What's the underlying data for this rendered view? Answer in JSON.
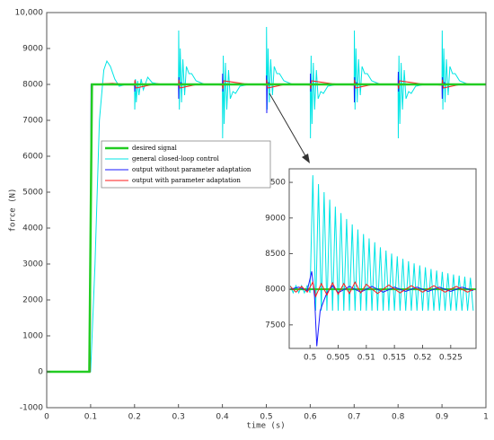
{
  "chart_data": [
    {
      "type": "line",
      "xlabel": "time (s)",
      "ylabel": "force (N)",
      "xlim": [
        0,
        1
      ],
      "ylim": [
        -1000,
        10000
      ],
      "xticks": [
        0,
        0.1,
        0.2,
        0.3,
        0.4,
        0.5,
        0.6,
        0.7,
        0.8,
        0.9,
        1
      ],
      "yticks": [
        -1000,
        0,
        1000,
        2000,
        3000,
        4000,
        5000,
        6000,
        7000,
        8000,
        9000,
        {
          "value": 10000,
          "label": "10,000"
        }
      ],
      "series": [
        {
          "name": "general closed-loop control",
          "color": "#00e5e5",
          "x": [
            0,
            0.1,
            0.11,
            0.12,
            0.13,
            0.137,
            0.145,
            0.155,
            0.165,
            0.18,
            0.2,
            0.2005,
            0.202,
            0.204,
            0.207,
            0.21,
            0.215,
            0.22,
            0.23,
            0.24,
            0.26,
            0.3,
            0.3005,
            0.302,
            0.304,
            0.307,
            0.31,
            0.314,
            0.318,
            0.324,
            0.33,
            0.34,
            0.36,
            0.4,
            0.4005,
            0.402,
            0.404,
            0.407,
            0.41,
            0.414,
            0.418,
            0.424,
            0.43,
            0.44,
            0.46,
            0.5,
            0.5005,
            0.502,
            0.504,
            0.507,
            0.51,
            0.514,
            0.518,
            0.524,
            0.53,
            0.54,
            0.56,
            0.6,
            0.6005,
            0.602,
            0.604,
            0.607,
            0.61,
            0.614,
            0.618,
            0.624,
            0.63,
            0.64,
            0.66,
            0.7,
            0.7005,
            0.702,
            0.704,
            0.707,
            0.71,
            0.714,
            0.718,
            0.724,
            0.73,
            0.74,
            0.76,
            0.8,
            0.8005,
            0.802,
            0.804,
            0.807,
            0.81,
            0.814,
            0.818,
            0.824,
            0.83,
            0.84,
            0.86,
            0.9,
            0.9005,
            0.902,
            0.904,
            0.907,
            0.91,
            0.914,
            0.918,
            0.924,
            0.93,
            0.94,
            0.96,
            1
          ],
          "values": [
            0,
            0,
            3000,
            7000,
            8400,
            8650,
            8500,
            8150,
            7950,
            8000,
            8000,
            7300,
            8150,
            7500,
            8100,
            7700,
            8150,
            7850,
            8200,
            8050,
            8000,
            8000,
            9500,
            7300,
            9000,
            7500,
            8700,
            7700,
            8500,
            8300,
            8300,
            8100,
            8000,
            8000,
            6500,
            8800,
            6900,
            8600,
            7300,
            8400,
            7600,
            7800,
            7750,
            7950,
            8000,
            8000,
            9600,
            7300,
            9000,
            7500,
            8700,
            7700,
            8500,
            8300,
            8300,
            8100,
            8000,
            8000,
            6500,
            8800,
            6900,
            8600,
            7300,
            8400,
            7600,
            7800,
            7750,
            7950,
            8000,
            8000,
            9500,
            7300,
            9000,
            7500,
            8700,
            7700,
            8500,
            8300,
            8300,
            8100,
            8000,
            8000,
            6500,
            8800,
            6900,
            8600,
            7300,
            8400,
            7600,
            7800,
            7750,
            7950,
            8000,
            8000,
            9500,
            7300,
            9000,
            7500,
            8700,
            7700,
            8500,
            8300,
            8300,
            8100,
            8000,
            8000
          ]
        },
        {
          "name": "output without parameter adaptation",
          "color": "#1a1aff",
          "x": [
            0,
            0.099,
            0.1005,
            0.101,
            0.2,
            0.2005,
            0.201,
            0.203,
            0.3,
            0.3005,
            0.301,
            0.302,
            0.305,
            0.31,
            0.4,
            0.4005,
            0.401,
            0.402,
            0.405,
            0.41,
            0.5,
            0.5005,
            0.501,
            0.502,
            0.505,
            0.51,
            0.6,
            0.6005,
            0.601,
            0.602,
            0.605,
            0.61,
            0.7,
            0.7005,
            0.701,
            0.702,
            0.705,
            0.71,
            0.8,
            0.8005,
            0.801,
            0.802,
            0.805,
            0.81,
            0.9,
            0.9005,
            0.901,
            0.902,
            0.905,
            0.91,
            1
          ],
          "values": [
            0,
            0,
            6100,
            8000,
            8000,
            7800,
            8100,
            8000,
            8000,
            7600,
            8200,
            7950,
            8050,
            8000,
            8000,
            8300,
            7800,
            8050,
            7980,
            8000,
            8000,
            8250,
            7200,
            7900,
            8050,
            8000,
            8000,
            8300,
            7800,
            8050,
            7980,
            8000,
            8000,
            7500,
            8200,
            7950,
            8050,
            8000,
            8000,
            8350,
            7800,
            8050,
            7980,
            8000,
            8000,
            7600,
            8200,
            7950,
            8050,
            8000,
            8000
          ]
        },
        {
          "name": "output with parameter adaptation",
          "color": "#ff1a1a",
          "x": [
            0,
            0.099,
            0.102,
            0.15,
            0.2,
            0.201,
            0.203,
            0.25,
            0.3,
            0.301,
            0.303,
            0.35,
            0.4,
            0.401,
            0.403,
            0.45,
            0.5,
            0.501,
            0.503,
            0.55,
            0.6,
            0.601,
            0.603,
            0.65,
            0.7,
            0.701,
            0.703,
            0.75,
            0.8,
            0.801,
            0.803,
            0.85,
            0.9,
            0.901,
            0.903,
            0.95,
            1
          ],
          "values": [
            0,
            0,
            8000,
            8030,
            7980,
            8120,
            7900,
            8020,
            7980,
            8130,
            7900,
            8020,
            7980,
            7880,
            8100,
            8020,
            7980,
            8130,
            7900,
            8020,
            7980,
            7880,
            8100,
            8020,
            7980,
            8130,
            7900,
            8020,
            7980,
            7880,
            8100,
            8020,
            7980,
            8130,
            7900,
            8020,
            8000
          ]
        },
        {
          "name": "desired signal",
          "color": "#22cc22",
          "x": [
            0,
            0.097,
            0.103,
            1
          ],
          "values": [
            0,
            0,
            8000,
            8000
          ]
        }
      ],
      "legend_order": [
        3,
        0,
        1,
        2
      ]
    },
    {
      "type": "line",
      "xlim": [
        0.4963,
        0.5295
      ],
      "ylim": [
        7170,
        9690
      ],
      "xticks": [
        0.5,
        0.505,
        0.51,
        0.515,
        0.52,
        0.525
      ],
      "yticks": [
        7500,
        8000,
        8500,
        9000,
        9500
      ],
      "series": [
        {
          "color": "#00e5e5",
          "x": [
            0.4965,
            0.497,
            0.4975,
            0.498,
            0.4985,
            0.499,
            0.4995,
            0.5,
            0.5005,
            0.501,
            0.5015,
            0.502,
            0.5025,
            0.503,
            0.5035,
            0.504,
            0.5045,
            0.505,
            0.5055,
            0.506,
            0.5065,
            0.507,
            0.5075,
            0.508,
            0.5085,
            0.509,
            0.5095,
            0.51,
            0.5105,
            0.511,
            0.5115,
            0.512,
            0.5125,
            0.513,
            0.5135,
            0.514,
            0.5145,
            0.515,
            0.5155,
            0.516,
            0.5165,
            0.517,
            0.5175,
            0.518,
            0.5185,
            0.519,
            0.5195,
            0.52,
            0.5205,
            0.521,
            0.5215,
            0.522,
            0.5225,
            0.523,
            0.5235,
            0.524,
            0.5245,
            0.525,
            0.5255,
            0.526,
            0.5265,
            0.527,
            0.5275,
            0.528,
            0.5285,
            0.529
          ],
          "values": [
            8050,
            7950,
            8050,
            7950,
            8050,
            7950,
            8050,
            7950,
            9600,
            7700,
            9476,
            7700,
            9362,
            7700,
            9256,
            7700,
            9159,
            7700,
            9069,
            7700,
            8986,
            7700,
            8910,
            7700,
            8839,
            7700,
            8774,
            7700,
            8714,
            7700,
            8659,
            7700,
            8589,
            7700,
            8543,
            7700,
            8501,
            7700,
            8462,
            7700,
            8427,
            7700,
            8394,
            7700,
            8363,
            7700,
            8335,
            7700,
            8309,
            7700,
            8285,
            7700,
            8263,
            7700,
            8243,
            7700,
            8224,
            7700,
            8207,
            7700,
            8191,
            7700,
            8176,
            7700,
            8162,
            7700
          ]
        },
        {
          "color": "#22cc22",
          "x": [
            0.4965,
            0.5295
          ],
          "values": [
            8000,
            8000
          ]
        },
        {
          "color": "#1a1aff",
          "x": [
            0.4965,
            0.498,
            0.4995,
            0.5003,
            0.5008,
            0.5012,
            0.5018,
            0.5025,
            0.503,
            0.504,
            0.505,
            0.507,
            0.509,
            0.511,
            0.513,
            0.515,
            0.517,
            0.519,
            0.521,
            0.523,
            0.525,
            0.527,
            0.529
          ],
          "values": [
            8000,
            8030,
            7980,
            8250,
            7900,
            7200,
            7700,
            7850,
            7950,
            8050,
            7950,
            8040,
            7960,
            8040,
            7960,
            8030,
            7970,
            8030,
            7970,
            8030,
            7970,
            8030,
            7980
          ]
        },
        {
          "color": "#ff1a1a",
          "x": [
            0.4965,
            0.4975,
            0.4985,
            0.4995,
            0.5005,
            0.501,
            0.502,
            0.503,
            0.504,
            0.505,
            0.506,
            0.507,
            0.508,
            0.509,
            0.51,
            0.512,
            0.514,
            0.516,
            0.518,
            0.52,
            0.522,
            0.524,
            0.526,
            0.528,
            0.529
          ],
          "values": [
            8040,
            7960,
            8040,
            7960,
            8100,
            7900,
            8080,
            7920,
            8090,
            7930,
            8080,
            7940,
            8100,
            7950,
            8070,
            7940,
            8060,
            7950,
            8050,
            7960,
            8050,
            7960,
            8040,
            7960,
            8000
          ]
        }
      ]
    }
  ]
}
